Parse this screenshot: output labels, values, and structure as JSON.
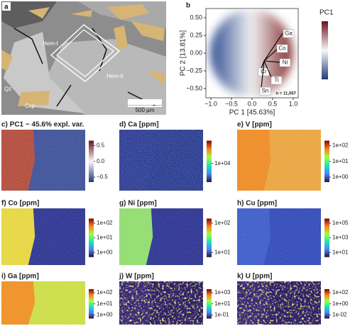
{
  "panel_a": {
    "label": "a",
    "annotations": [
      "Hem-I",
      "Hem-II",
      "Qz",
      "Ccp"
    ],
    "scale_bar": "500 µm"
  },
  "panel_b": {
    "label": "b",
    "x_label": "PC 1 [45.63%]",
    "y_label": "PC 2 [13.81%]",
    "x_ticks": [
      "−1.0",
      "−0.5",
      "0.0",
      "0.5",
      "1.0"
    ],
    "y_ticks": [
      "0.50",
      "0.25",
      "0.00",
      "−0.25",
      "−0.50"
    ],
    "loadings": [
      "Ga",
      "Co",
      "Ni",
      "Cr",
      "Ti",
      "Sn"
    ],
    "n_label": "n = 11,067",
    "colorbar_title": "PC1"
  },
  "maps": [
    {
      "title": "c) PC1 − 45.6% expl. var.",
      "colorbar_ticks": [
        "0.5",
        "0.0",
        "−0.5"
      ]
    },
    {
      "title": "d) Ca [ppm]",
      "colorbar_ticks": [
        "1e+04"
      ]
    },
    {
      "title": "e) V [ppm]",
      "colorbar_ticks": [
        "1e+02",
        "1e+01",
        "1e+00"
      ]
    },
    {
      "title": "f) Co [ppm]",
      "colorbar_ticks": [
        "1e+02",
        "1e+01",
        "1e+00"
      ]
    },
    {
      "title": "g) Ni [ppm]",
      "colorbar_ticks": [
        "1e+02",
        "1e+01"
      ]
    },
    {
      "title": "h) Cu [ppm]",
      "colorbar_ticks": [
        "1e+05",
        "1e+03",
        "1e+01"
      ]
    },
    {
      "title": "i) Ga [ppm]",
      "colorbar_ticks": [
        "1e+02",
        "1e+01",
        "1e+00"
      ]
    },
    {
      "title": "j) W [ppm]",
      "colorbar_ticks": [
        "1e+03",
        "1e+01",
        "1e-01"
      ]
    },
    {
      "title": "k) U [ppm]",
      "colorbar_ticks": [
        "1e+02",
        "1e+00",
        "1e-02"
      ]
    }
  ]
}
